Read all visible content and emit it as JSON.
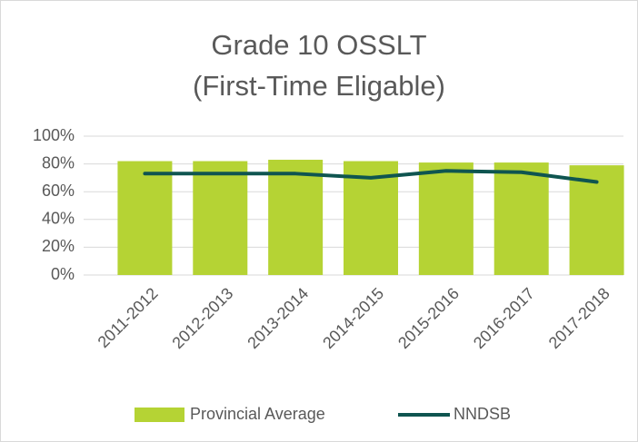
{
  "chart_data": {
    "type": "bar",
    "title": [
      "Grade 10 OSSLT",
      "(First-Time Eligable)"
    ],
    "categories": [
      "2011-2012",
      "2012-2013",
      "2013-2014",
      "2014-2015",
      "2015-2016",
      "2016-2017",
      "2017-2018"
    ],
    "series": [
      {
        "name": "Provincial Average",
        "type": "bar",
        "color": "#b5d334",
        "values": [
          82,
          82,
          83,
          82,
          81,
          81,
          79
        ]
      },
      {
        "name": "NNDSB",
        "type": "line",
        "color": "#0f5550",
        "values": [
          73,
          73,
          73,
          70,
          75,
          74,
          67
        ]
      }
    ],
    "ylim": [
      0,
      100
    ],
    "yticks": [
      {
        "value": 0,
        "label": "0%"
      },
      {
        "value": 20,
        "label": "20%"
      },
      {
        "value": 40,
        "label": "40%"
      },
      {
        "value": 60,
        "label": "60%"
      },
      {
        "value": 80,
        "label": "80%"
      },
      {
        "value": 100,
        "label": "100%"
      }
    ],
    "grid": true,
    "legend": "bottom"
  }
}
